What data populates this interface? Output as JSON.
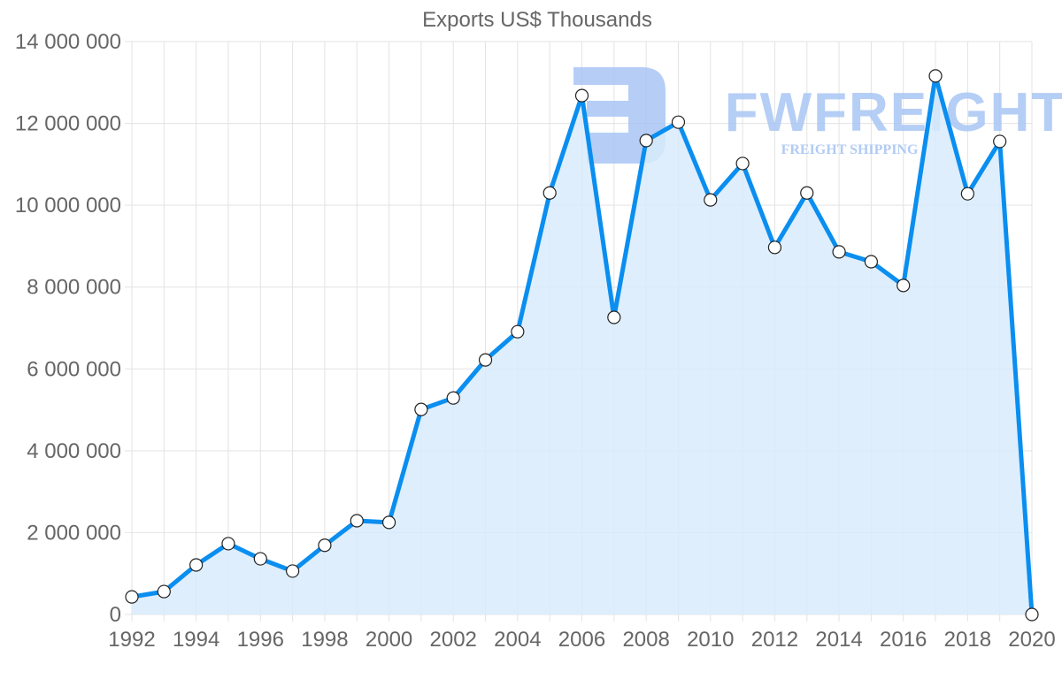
{
  "chart_data": {
    "type": "line",
    "title": "Exports US$ Thousands",
    "xlabel": "",
    "ylabel": "",
    "x": [
      1992,
      1993,
      1994,
      1995,
      1996,
      1997,
      1998,
      1999,
      2000,
      2001,
      2002,
      2003,
      2004,
      2005,
      2006,
      2007,
      2008,
      2009,
      2010,
      2011,
      2012,
      2013,
      2014,
      2015,
      2016,
      2017,
      2018,
      2019,
      2020
    ],
    "series": [
      {
        "name": "Exports US$ Thousands",
        "values": [
          430000,
          560000,
          1210000,
          1730000,
          1360000,
          1060000,
          1690000,
          2290000,
          2250000,
          5010000,
          5290000,
          6220000,
          6910000,
          10300000,
          12680000,
          7260000,
          11580000,
          12030000,
          10130000,
          11020000,
          8970000,
          10300000,
          8860000,
          8620000,
          8040000,
          13160000,
          10280000,
          11560000,
          0
        ],
        "color": "#0a8ef0",
        "fill": "#d8ebfc",
        "fill_area": true
      }
    ],
    "xticks": [
      "1992",
      "1994",
      "1996",
      "1998",
      "2000",
      "2002",
      "2004",
      "2006",
      "2008",
      "2010",
      "2012",
      "2014",
      "2016",
      "2018",
      "2020"
    ],
    "yticks": [
      "0",
      "2 000 000",
      "4 000 000",
      "6 000 000",
      "8 000 000",
      "10 000 000",
      "12 000 000",
      "14 000 000"
    ],
    "ylim": [
      0,
      14000000
    ],
    "xlim": [
      1992,
      2020
    ],
    "grid": true,
    "legend": "none"
  },
  "watermark": {
    "brand": "FWFREIGHT",
    "tagline": "FREIGHT SHIPPING",
    "color": "#a9c6f4"
  }
}
